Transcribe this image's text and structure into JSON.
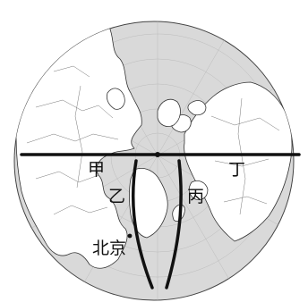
{
  "map": {
    "projection": "polar-azimuthal",
    "center": "north-pole",
    "labels": {
      "jia": "甲",
      "yi": "乙",
      "bing": "丙",
      "ding": "丁",
      "beijing": "北京"
    },
    "colors": {
      "ocean": "#d9d9d9",
      "land": "#ffffff",
      "line": "#111111"
    }
  }
}
